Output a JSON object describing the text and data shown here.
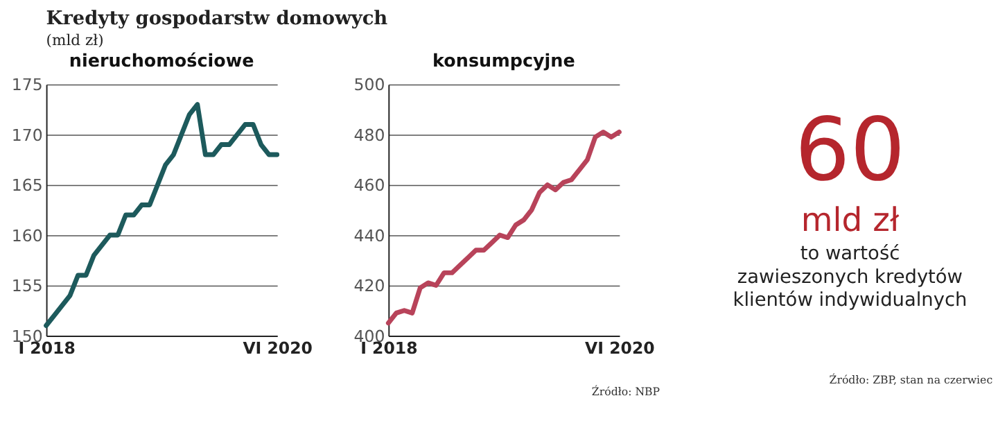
{
  "chart_data": [
    {
      "type": "other",
      "title": "Kredyty gospodarstw domowych",
      "subtitle": "(mld zł)"
    },
    {
      "type": "line",
      "title": "nieruchomościowe",
      "categories": [
        "I 2018",
        null,
        null,
        null,
        null,
        null,
        null,
        null,
        null,
        null,
        null,
        null,
        null,
        null,
        null,
        null,
        null,
        null,
        null,
        null,
        null,
        null,
        null,
        null,
        null,
        null,
        null,
        null,
        null,
        "VI 2020"
      ],
      "series": [
        {
          "color": "#1d5a5c",
          "values": [
            151,
            152,
            153,
            154,
            156,
            156,
            158,
            159,
            160,
            160,
            162,
            162,
            163,
            163,
            165,
            167,
            168,
            170,
            172,
            173,
            168,
            168,
            169,
            169,
            170,
            171,
            171,
            169,
            168,
            168
          ]
        }
      ],
      "ylim": [
        150,
        175
      ],
      "yticks": [
        150,
        155,
        160,
        165,
        170,
        175
      ],
      "grid": "y"
    },
    {
      "type": "line",
      "title": "konsumpcyjne",
      "categories": [
        "I 2018",
        null,
        null,
        null,
        null,
        null,
        null,
        null,
        null,
        null,
        null,
        null,
        null,
        null,
        null,
        null,
        null,
        null,
        null,
        null,
        null,
        null,
        null,
        null,
        null,
        null,
        null,
        null,
        null,
        "VI 2020"
      ],
      "series": [
        {
          "color": "#b8435a",
          "values": [
            405,
            409,
            410,
            409,
            419,
            421,
            420,
            425,
            425,
            428,
            431,
            434,
            434,
            437,
            440,
            439,
            444,
            446,
            450,
            457,
            460,
            458,
            461,
            462,
            466,
            470,
            479,
            481,
            479,
            481
          ]
        }
      ],
      "ylim": [
        400,
        500
      ],
      "yticks": [
        400,
        420,
        440,
        460,
        480,
        500
      ],
      "grid": "y",
      "annotations": [
        "Źródło: NBP"
      ]
    },
    {
      "type": "other",
      "title": "60",
      "subtitle": "mld zł",
      "annotations": [
        "to wartość\nzawieszonych kredytów\nklientów indywidualnych",
        "Źródło: ZBP, stan na czerwiec"
      ]
    }
  ]
}
